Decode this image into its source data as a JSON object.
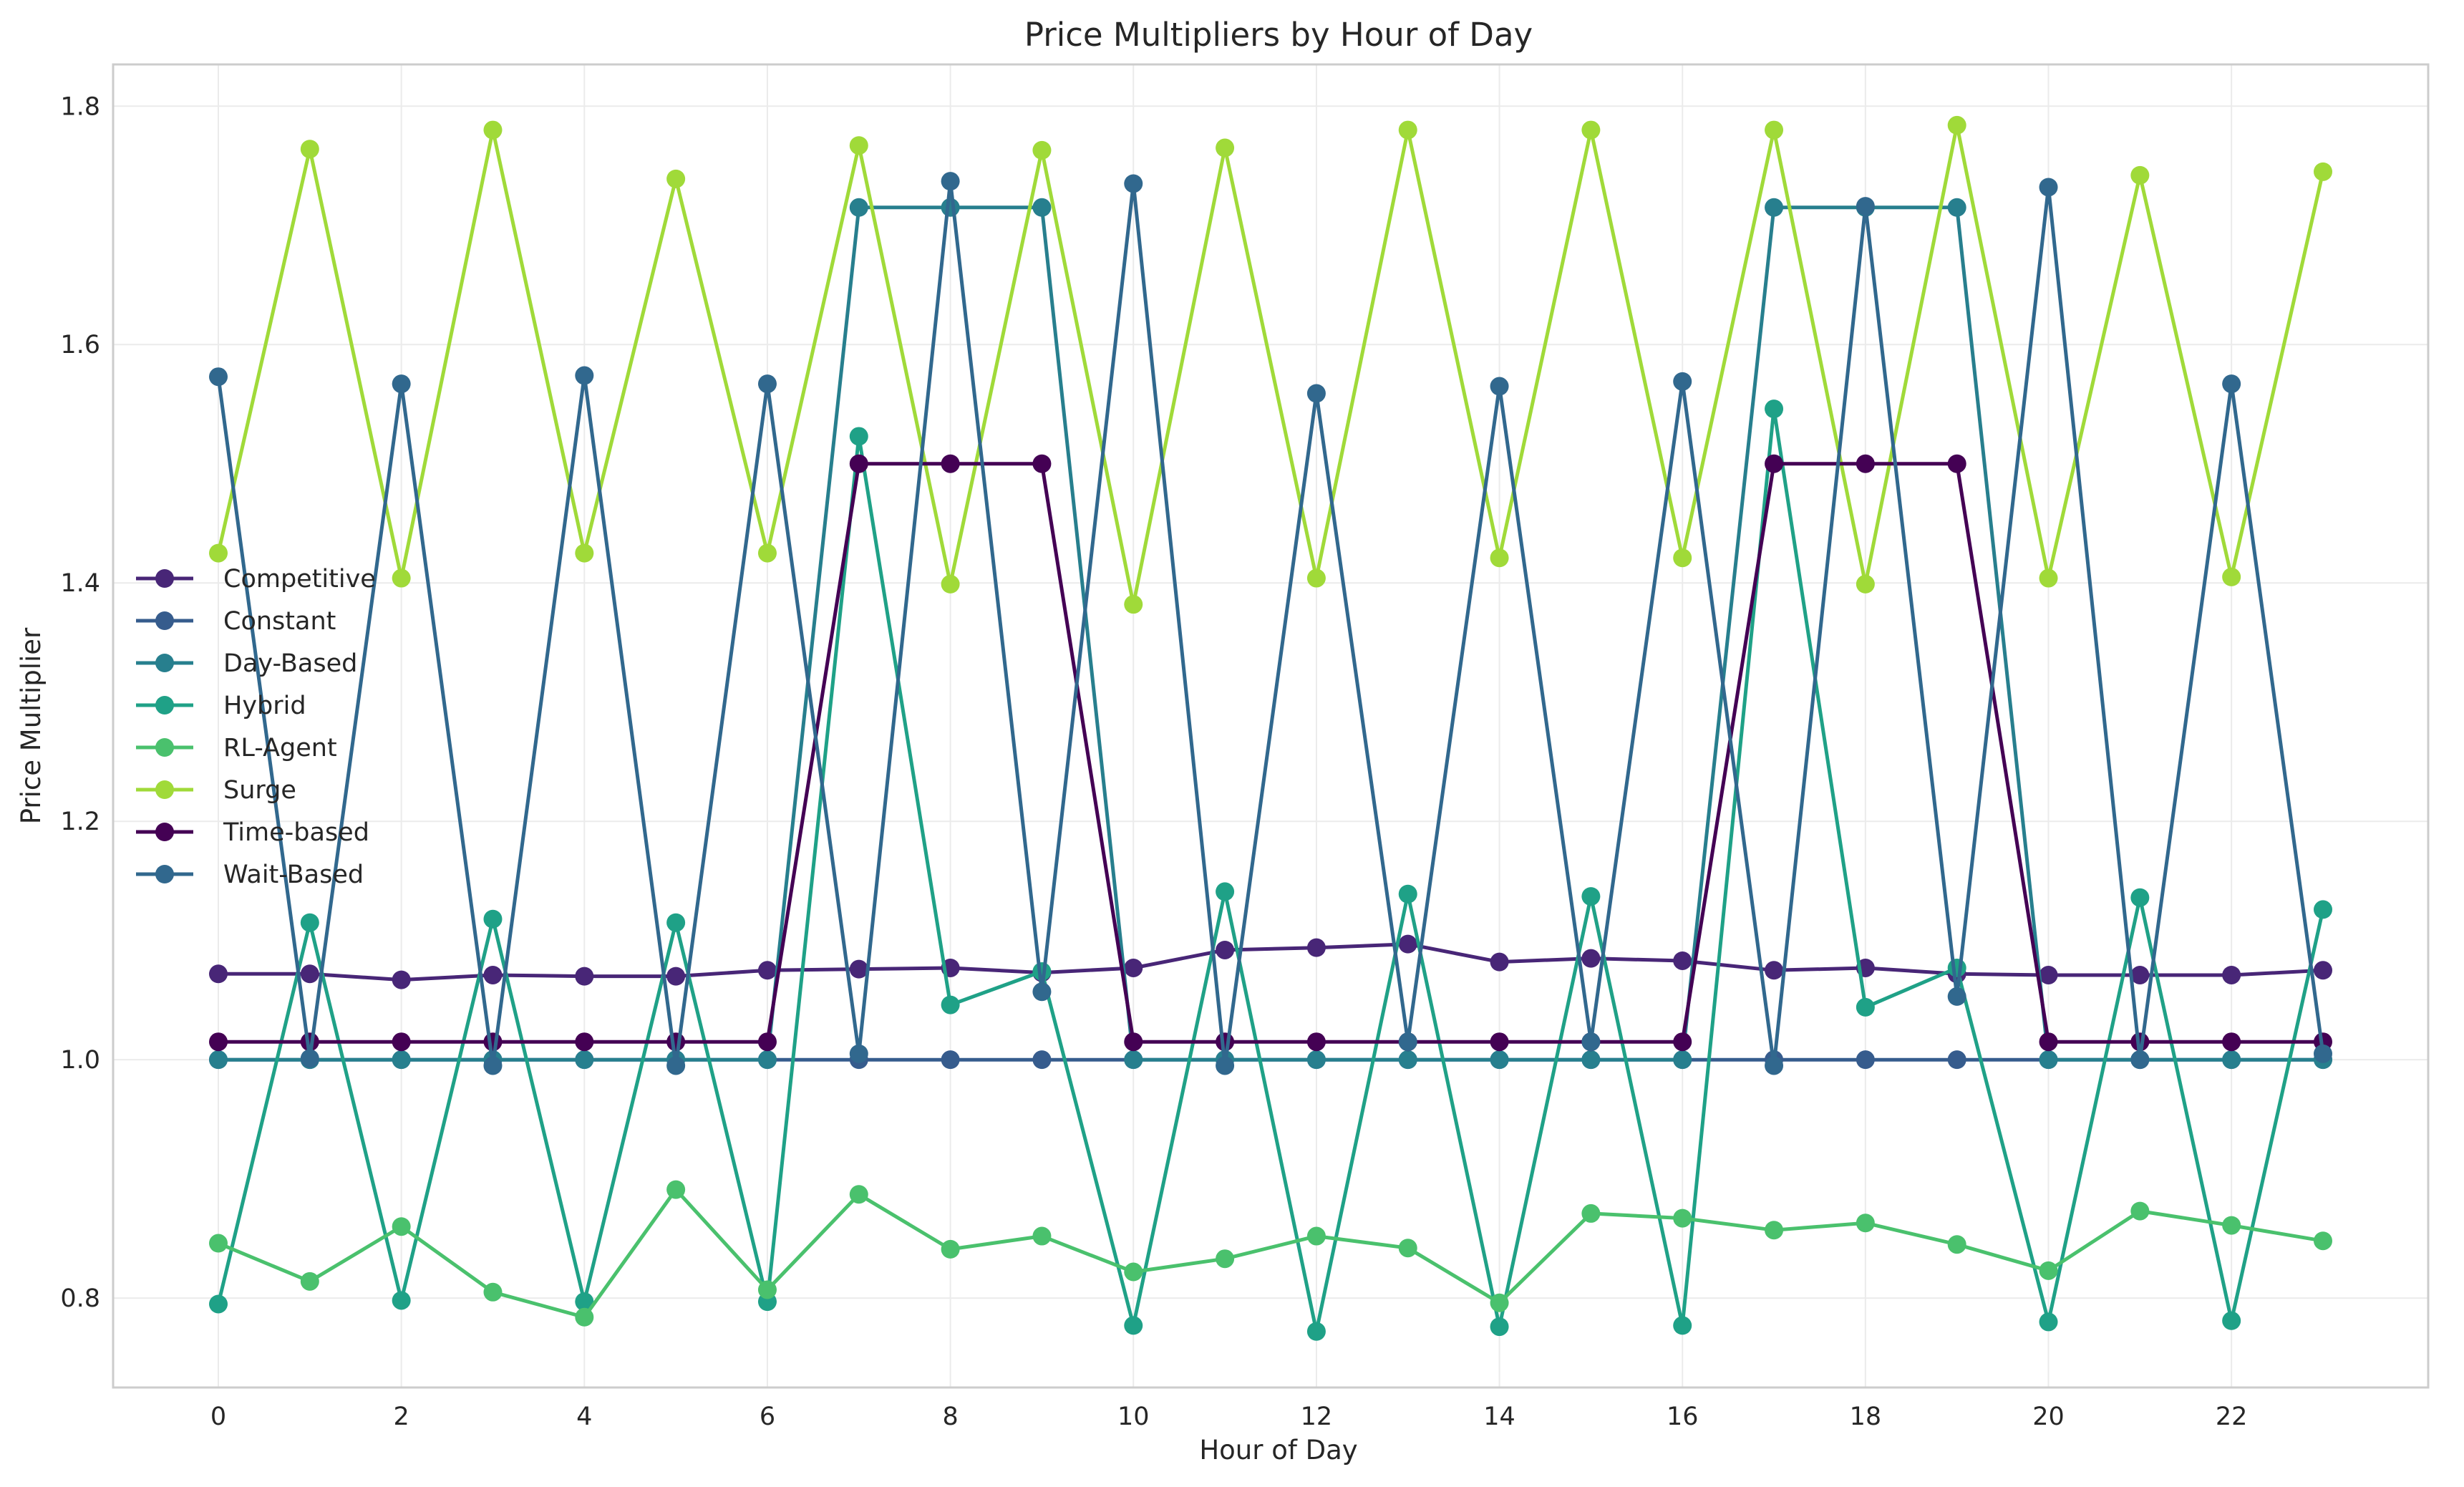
{
  "chart_data": {
    "type": "line",
    "title": "Price Multipliers by Hour of Day",
    "xlabel": "Hour of Day",
    "ylabel": "Price Multiplier",
    "xlim": [
      -1.15,
      24.15
    ],
    "ylim": [
      0.725,
      1.835
    ],
    "xticks": [
      0,
      2,
      4,
      6,
      8,
      10,
      12,
      14,
      16,
      18,
      20,
      22
    ],
    "yticks": [
      0.8,
      1.0,
      1.2,
      1.4,
      1.6,
      1.8
    ],
    "ytick_labels": [
      "0.8",
      "1.0",
      "1.2",
      "1.4",
      "1.6",
      "1.8"
    ],
    "grid": true,
    "legend_position": "center-left",
    "x": [
      0,
      1,
      2,
      3,
      4,
      5,
      6,
      7,
      8,
      9,
      10,
      11,
      12,
      13,
      14,
      15,
      16,
      17,
      18,
      19,
      20,
      21,
      22,
      23
    ],
    "series": [
      {
        "name": "Competitive",
        "color": "#482677",
        "values": [
          1.072,
          1.072,
          1.067,
          1.071,
          1.07,
          1.07,
          1.075,
          1.076,
          1.077,
          1.073,
          1.077,
          1.092,
          1.094,
          1.097,
          1.082,
          1.085,
          1.083,
          1.075,
          1.077,
          1.072,
          1.071,
          1.071,
          1.071,
          1.075
        ]
      },
      {
        "name": "Constant",
        "color": "#365c8d",
        "values": [
          1.0,
          1.0,
          1.0,
          1.0,
          1.0,
          1.0,
          1.0,
          1.0,
          1.0,
          1.0,
          1.0,
          1.0,
          1.0,
          1.0,
          1.0,
          1.0,
          1.0,
          1.0,
          1.0,
          1.0,
          1.0,
          1.0,
          1.0,
          1.0
        ]
      },
      {
        "name": "Day-Based",
        "color": "#277f8e",
        "values": [
          1.0,
          1.0,
          1.0,
          1.0,
          1.0,
          1.0,
          1.0,
          1.715,
          1.715,
          1.715,
          1.0,
          1.0,
          1.0,
          1.0,
          1.0,
          1.0,
          1.0,
          1.715,
          1.715,
          1.715,
          1.0,
          1.0,
          1.0,
          1.0
        ]
      },
      {
        "name": "Hybrid",
        "color": "#1fa187",
        "values": [
          0.795,
          1.115,
          0.798,
          1.118,
          0.797,
          1.115,
          0.797,
          1.523,
          1.046,
          1.074,
          0.777,
          1.141,
          0.772,
          1.139,
          0.776,
          1.137,
          0.777,
          1.546,
          1.044,
          1.077,
          0.78,
          1.136,
          0.781,
          1.126
        ]
      },
      {
        "name": "RL-Agent",
        "color": "#4ac16d",
        "values": [
          0.846,
          0.814,
          0.86,
          0.805,
          0.784,
          0.891,
          0.807,
          0.887,
          0.841,
          0.852,
          0.822,
          0.833,
          0.852,
          0.842,
          0.796,
          0.871,
          0.867,
          0.857,
          0.863,
          0.845,
          0.823,
          0.873,
          0.861,
          0.848
        ]
      },
      {
        "name": "Surge",
        "color": "#a0da39",
        "values": [
          1.425,
          1.764,
          1.404,
          1.78,
          1.425,
          1.739,
          1.425,
          1.767,
          1.399,
          1.763,
          1.382,
          1.765,
          1.404,
          1.78,
          1.421,
          1.78,
          1.421,
          1.78,
          1.399,
          1.784,
          1.404,
          1.742,
          1.405,
          1.745
        ]
      },
      {
        "name": "Time-based",
        "color": "#440154",
        "values": [
          1.015,
          1.015,
          1.015,
          1.015,
          1.015,
          1.015,
          1.015,
          1.5,
          1.5,
          1.5,
          1.015,
          1.015,
          1.015,
          1.015,
          1.015,
          1.015,
          1.015,
          1.5,
          1.5,
          1.5,
          1.015,
          1.015,
          1.015,
          1.015
        ]
      },
      {
        "name": "Wait-Based",
        "color": "#31688e",
        "values": [
          1.573,
          1.001,
          1.567,
          0.995,
          1.574,
          0.995,
          1.567,
          1.005,
          1.737,
          1.057,
          1.735,
          0.995,
          1.559,
          1.015,
          1.565,
          1.015,
          1.569,
          0.995,
          1.716,
          1.053,
          1.732,
          1.0,
          1.567,
          1.005
        ]
      }
    ]
  }
}
